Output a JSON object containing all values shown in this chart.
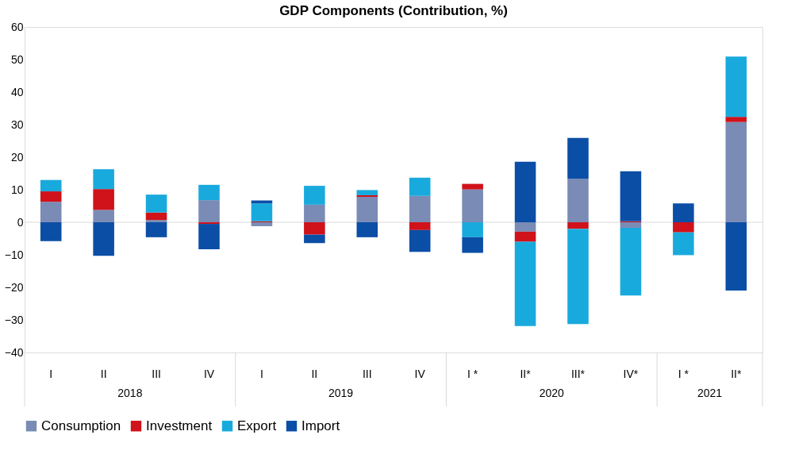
{
  "chart_data": {
    "type": "bar",
    "stacked": true,
    "title": "GDP Components (Contribution, %)",
    "categories": [
      "I",
      "II",
      "III",
      "IV",
      "I",
      "II",
      "III",
      "IV",
      "I *",
      "II*",
      "III*",
      "IV*",
      "I *",
      "II*"
    ],
    "annotations": [
      "2018",
      "2019",
      "2020",
      "2021"
    ],
    "series": [
      {
        "name": "Consumption",
        "color": "#7a8bb5",
        "values": [
          6.3,
          3.8,
          0.7,
          6.8,
          -1.2,
          5.4,
          7.8,
          8.1,
          10.1,
          -2.9,
          13.4,
          -1.7,
          0,
          30.8
        ]
      },
      {
        "name": "Investment",
        "color": "#d0121a",
        "values": [
          3.2,
          6.4,
          2.3,
          -0.5,
          0.3,
          -3.8,
          0.5,
          -2.4,
          1.7,
          -3.1,
          -2.0,
          0.3,
          -3.1,
          1.6
        ]
      },
      {
        "name": "Export",
        "color": "#19aadd",
        "values": [
          3.5,
          6.1,
          5.5,
          4.7,
          5.5,
          5.8,
          1.6,
          5.6,
          -4.6,
          -25.9,
          -29.3,
          -20.8,
          -7.0,
          18.5
        ]
      },
      {
        "name": "Import",
        "color": "#0b4ea6",
        "values": [
          -5.8,
          -10.3,
          -4.6,
          -7.8,
          0.9,
          -2.6,
          -4.6,
          -6.7,
          -4.8,
          18.6,
          12.5,
          15.4,
          5.8,
          -21.0
        ]
      }
    ],
    "ylim": [
      -40,
      60
    ],
    "yticks": [
      -40,
      -30,
      -20,
      -10,
      0,
      10,
      20,
      30,
      40,
      50,
      60
    ],
    "ref_lines": [
      {
        "axis": "y",
        "value": 0,
        "color": "#d9d9d9"
      }
    ],
    "grid": false,
    "legend": "bottom"
  }
}
